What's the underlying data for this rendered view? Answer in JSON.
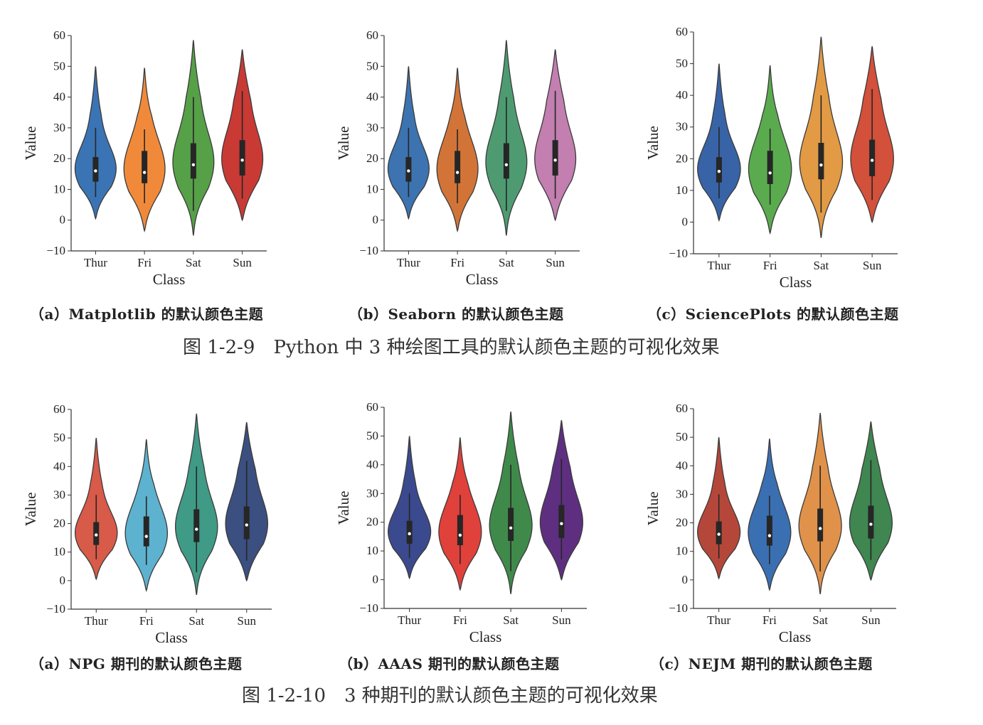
{
  "figure_1": {
    "title": "图 1-2-9　Python 中 3 种绘图工具的默认颜色主题的可视化效果",
    "captions": [
      "（a）Matplotlib 的默认颜色主题",
      "（b）Seaborn 的默认颜色主题",
      "（c）SciencePlots 的默认颜色主题"
    ]
  },
  "figure_2": {
    "title": "图 1-2-10　3 种期刊的默认颜色主题的可视化效果",
    "captions": [
      "（a）NPG 期刊的默认颜色主题",
      "（b）AAAS 期刊的默认颜色主题",
      "（c）NEJM 期刊的默认颜色主题"
    ]
  },
  "chart_data": [
    {
      "type": "violin",
      "xlabel": "Class",
      "ylabel": "Value",
      "categories": [
        "Thur",
        "Fri",
        "Sat",
        "Sun"
      ],
      "ylim": [
        -10,
        60
      ],
      "yticks": [
        -10,
        0,
        10,
        20,
        30,
        40,
        50,
        60
      ],
      "colors": [
        "#3a74b4",
        "#f08a3a",
        "#56a048",
        "#c93a35"
      ],
      "stats": [
        {
          "min": 0.5,
          "max": 50,
          "q1": 12.5,
          "median": 16,
          "q3": 20.5,
          "wlo": 7.5,
          "whi": 30
        },
        {
          "min": -3.5,
          "max": 49.5,
          "q1": 12,
          "median": 15.5,
          "q3": 22.5,
          "wlo": 5.5,
          "whi": 29.5
        },
        {
          "min": -5,
          "max": 58.5,
          "q1": 13.5,
          "median": 18,
          "q3": 25,
          "wlo": 3,
          "whi": 40
        },
        {
          "min": 0,
          "max": 55.5,
          "q1": 14.5,
          "median": 19.5,
          "q3": 26,
          "wlo": 7,
          "whi": 42
        }
      ]
    },
    {
      "type": "violin",
      "xlabel": "Class",
      "ylabel": "Value",
      "categories": [
        "Thur",
        "Fri",
        "Sat",
        "Sun"
      ],
      "ylim": [
        -10,
        60
      ],
      "yticks": [
        -10,
        0,
        10,
        20,
        30,
        40,
        50,
        60
      ],
      "colors": [
        "#3c73b0",
        "#d27437",
        "#4e9b72",
        "#c27fb0"
      ],
      "stats": [
        {
          "min": 0.5,
          "max": 50,
          "q1": 12.5,
          "median": 16,
          "q3": 20.5,
          "wlo": 7.5,
          "whi": 30
        },
        {
          "min": -3.5,
          "max": 49.5,
          "q1": 12,
          "median": 15.5,
          "q3": 22.5,
          "wlo": 5.5,
          "whi": 29.5
        },
        {
          "min": -5,
          "max": 58.5,
          "q1": 13.5,
          "median": 18,
          "q3": 25,
          "wlo": 3,
          "whi": 40
        },
        {
          "min": 0,
          "max": 55.5,
          "q1": 14.5,
          "median": 19.5,
          "q3": 26,
          "wlo": 7,
          "whi": 42
        }
      ]
    },
    {
      "type": "violin",
      "xlabel": "Class",
      "ylabel": "Value",
      "categories": [
        "Thur",
        "Fri",
        "Sat",
        "Sun"
      ],
      "ylim": [
        -10,
        60
      ],
      "yticks": [
        -10,
        0,
        10,
        20,
        30,
        40,
        50,
        60
      ],
      "colors": [
        "#3863a6",
        "#5aab4e",
        "#e29a45",
        "#d3503a"
      ],
      "stats": [
        {
          "min": 0.5,
          "max": 50,
          "q1": 12.5,
          "median": 16,
          "q3": 20.5,
          "wlo": 7.5,
          "whi": 30
        },
        {
          "min": -3.5,
          "max": 49.5,
          "q1": 12,
          "median": 15.5,
          "q3": 22.5,
          "wlo": 5.5,
          "whi": 29.5
        },
        {
          "min": -5,
          "max": 58.5,
          "q1": 13.5,
          "median": 18,
          "q3": 25,
          "wlo": 3,
          "whi": 40
        },
        {
          "min": 0,
          "max": 55.5,
          "q1": 14.5,
          "median": 19.5,
          "q3": 26,
          "wlo": 7,
          "whi": 42
        }
      ]
    },
    {
      "type": "violin",
      "xlabel": "Class",
      "ylabel": "Value",
      "categories": [
        "Thur",
        "Fri",
        "Sat",
        "Sun"
      ],
      "ylim": [
        -10,
        60
      ],
      "yticks": [
        -10,
        0,
        10,
        20,
        30,
        40,
        50,
        60
      ],
      "colors": [
        "#d85a48",
        "#5db2cf",
        "#3f9a86",
        "#3b4f80"
      ],
      "stats": [
        {
          "min": 0.5,
          "max": 50,
          "q1": 12.5,
          "median": 16,
          "q3": 20.5,
          "wlo": 7.5,
          "whi": 30
        },
        {
          "min": -3.5,
          "max": 49.5,
          "q1": 12,
          "median": 15.5,
          "q3": 22.5,
          "wlo": 5.5,
          "whi": 29.5
        },
        {
          "min": -5,
          "max": 58.5,
          "q1": 13.5,
          "median": 18,
          "q3": 25,
          "wlo": 3,
          "whi": 40
        },
        {
          "min": 0,
          "max": 55.5,
          "q1": 14.5,
          "median": 19.5,
          "q3": 26,
          "wlo": 7,
          "whi": 42
        }
      ]
    },
    {
      "type": "violin",
      "xlabel": "Class",
      "ylabel": "Value",
      "categories": [
        "Thur",
        "Fri",
        "Sat",
        "Sun"
      ],
      "ylim": [
        -10,
        60
      ],
      "yticks": [
        -10,
        0,
        10,
        20,
        30,
        40,
        50,
        60
      ],
      "colors": [
        "#3b4a8e",
        "#e0413a",
        "#3f8a4b",
        "#5e2f80"
      ],
      "stats": [
        {
          "min": 0.5,
          "max": 50,
          "q1": 12.5,
          "median": 16,
          "q3": 20.5,
          "wlo": 7.5,
          "whi": 30
        },
        {
          "min": -3.5,
          "max": 49.5,
          "q1": 12,
          "median": 15.5,
          "q3": 22.5,
          "wlo": 5.5,
          "whi": 29.5
        },
        {
          "min": -5,
          "max": 58.5,
          "q1": 13.5,
          "median": 18,
          "q3": 25,
          "wlo": 3,
          "whi": 40
        },
        {
          "min": 0,
          "max": 55.5,
          "q1": 14.5,
          "median": 19.5,
          "q3": 26,
          "wlo": 7,
          "whi": 42
        }
      ]
    },
    {
      "type": "violin",
      "xlabel": "Class",
      "ylabel": "Value",
      "categories": [
        "Thur",
        "Fri",
        "Sat",
        "Sun"
      ],
      "ylim": [
        -10,
        60
      ],
      "yticks": [
        -10,
        0,
        10,
        20,
        30,
        40,
        50,
        60
      ],
      "colors": [
        "#b5473a",
        "#3a6fb2",
        "#e0924a",
        "#3f8650"
      ],
      "stats": [
        {
          "min": 0.5,
          "max": 50,
          "q1": 12.5,
          "median": 16,
          "q3": 20.5,
          "wlo": 7.5,
          "whi": 30
        },
        {
          "min": -3.5,
          "max": 49.5,
          "q1": 12,
          "median": 15.5,
          "q3": 22.5,
          "wlo": 5.5,
          "whi": 29.5
        },
        {
          "min": -5,
          "max": 58.5,
          "q1": 13.5,
          "median": 18,
          "q3": 25,
          "wlo": 3,
          "whi": 40
        },
        {
          "min": 0,
          "max": 55.5,
          "q1": 14.5,
          "median": 19.5,
          "q3": 26,
          "wlo": 7,
          "whi": 42
        }
      ]
    }
  ]
}
